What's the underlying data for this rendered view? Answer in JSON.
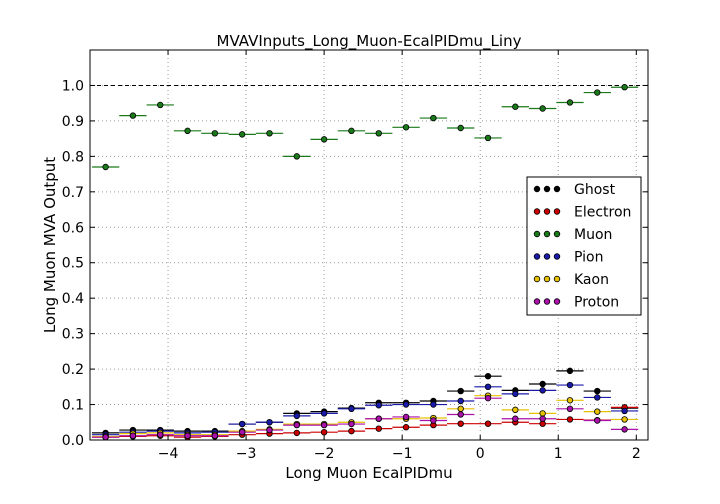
{
  "chart_data": {
    "type": "scatter",
    "title": "MVAVInputs_Long_Muon-EcalPIDmu_Liny",
    "xlabel": "Long Muon EcalPIDmu",
    "ylabel": "Long Muon MVA Output",
    "xlim": [
      -5.0,
      2.15
    ],
    "ylim": [
      0.0,
      1.1
    ],
    "xticks": [
      -4,
      -3,
      -2,
      -1,
      0,
      1,
      2
    ],
    "xtick_labels": [
      "−4",
      "−3",
      "−2",
      "−1",
      "0",
      "1",
      "2"
    ],
    "yticks": [
      0.0,
      0.1,
      0.2,
      0.3,
      0.4,
      0.5,
      0.6,
      0.7,
      0.8,
      0.9,
      1.0
    ],
    "ytick_labels": [
      "0.0",
      "0.1",
      "0.2",
      "0.3",
      "0.4",
      "0.5",
      "0.6",
      "0.7",
      "0.8",
      "0.9",
      "1.0"
    ],
    "grid": true,
    "reference_line": 1.0,
    "legend_position": "center-right",
    "x": [
      -4.8,
      -4.45,
      -4.1,
      -3.75,
      -3.4,
      -3.05,
      -2.7,
      -2.35,
      -2.0,
      -1.65,
      -1.3,
      -0.95,
      -0.6,
      -0.25,
      0.1,
      0.45,
      0.8,
      1.15,
      1.5,
      1.85
    ],
    "x_halfwidth": 0.175,
    "series": [
      {
        "name": "Ghost",
        "color": "#000000",
        "values": [
          0.02,
          0.028,
          0.028,
          0.025,
          0.025,
          0.045,
          0.05,
          0.075,
          0.08,
          0.09,
          0.105,
          0.105,
          0.11,
          0.138,
          0.18,
          0.14,
          0.158,
          0.195,
          0.138,
          0.09
        ]
      },
      {
        "name": "Electron",
        "color": "#cc0000",
        "values": [
          0.008,
          0.01,
          0.012,
          0.008,
          0.01,
          0.015,
          0.018,
          0.02,
          0.022,
          0.025,
          0.032,
          0.036,
          0.042,
          0.046,
          0.046,
          0.05,
          0.046,
          0.058,
          0.056,
          0.092
        ]
      },
      {
        "name": "Muon",
        "color": "#1a7a1a",
        "values": [
          0.77,
          0.915,
          0.945,
          0.872,
          0.865,
          0.862,
          0.865,
          0.8,
          0.848,
          0.872,
          0.865,
          0.882,
          0.908,
          0.88,
          0.852,
          0.94,
          0.935,
          0.952,
          0.98,
          0.995
        ]
      },
      {
        "name": "Pion",
        "color": "#1a1aaa",
        "values": [
          0.015,
          0.022,
          0.025,
          0.02,
          0.022,
          0.045,
          0.05,
          0.068,
          0.075,
          0.088,
          0.098,
          0.1,
          0.1,
          0.11,
          0.15,
          0.13,
          0.14,
          0.155,
          0.12,
          0.082
        ]
      },
      {
        "name": "Kaon",
        "color": "#e6c200",
        "values": [
          0.01,
          0.018,
          0.02,
          0.015,
          0.015,
          0.025,
          0.03,
          0.045,
          0.045,
          0.05,
          0.06,
          0.06,
          0.062,
          0.088,
          0.125,
          0.085,
          0.075,
          0.112,
          0.08,
          0.058
        ]
      },
      {
        "name": "Proton",
        "color": "#aa10aa",
        "values": [
          0.008,
          0.012,
          0.015,
          0.012,
          0.012,
          0.022,
          0.028,
          0.042,
          0.042,
          0.045,
          0.06,
          0.065,
          0.055,
          0.072,
          0.118,
          0.06,
          0.06,
          0.088,
          0.055,
          0.03
        ]
      }
    ]
  }
}
